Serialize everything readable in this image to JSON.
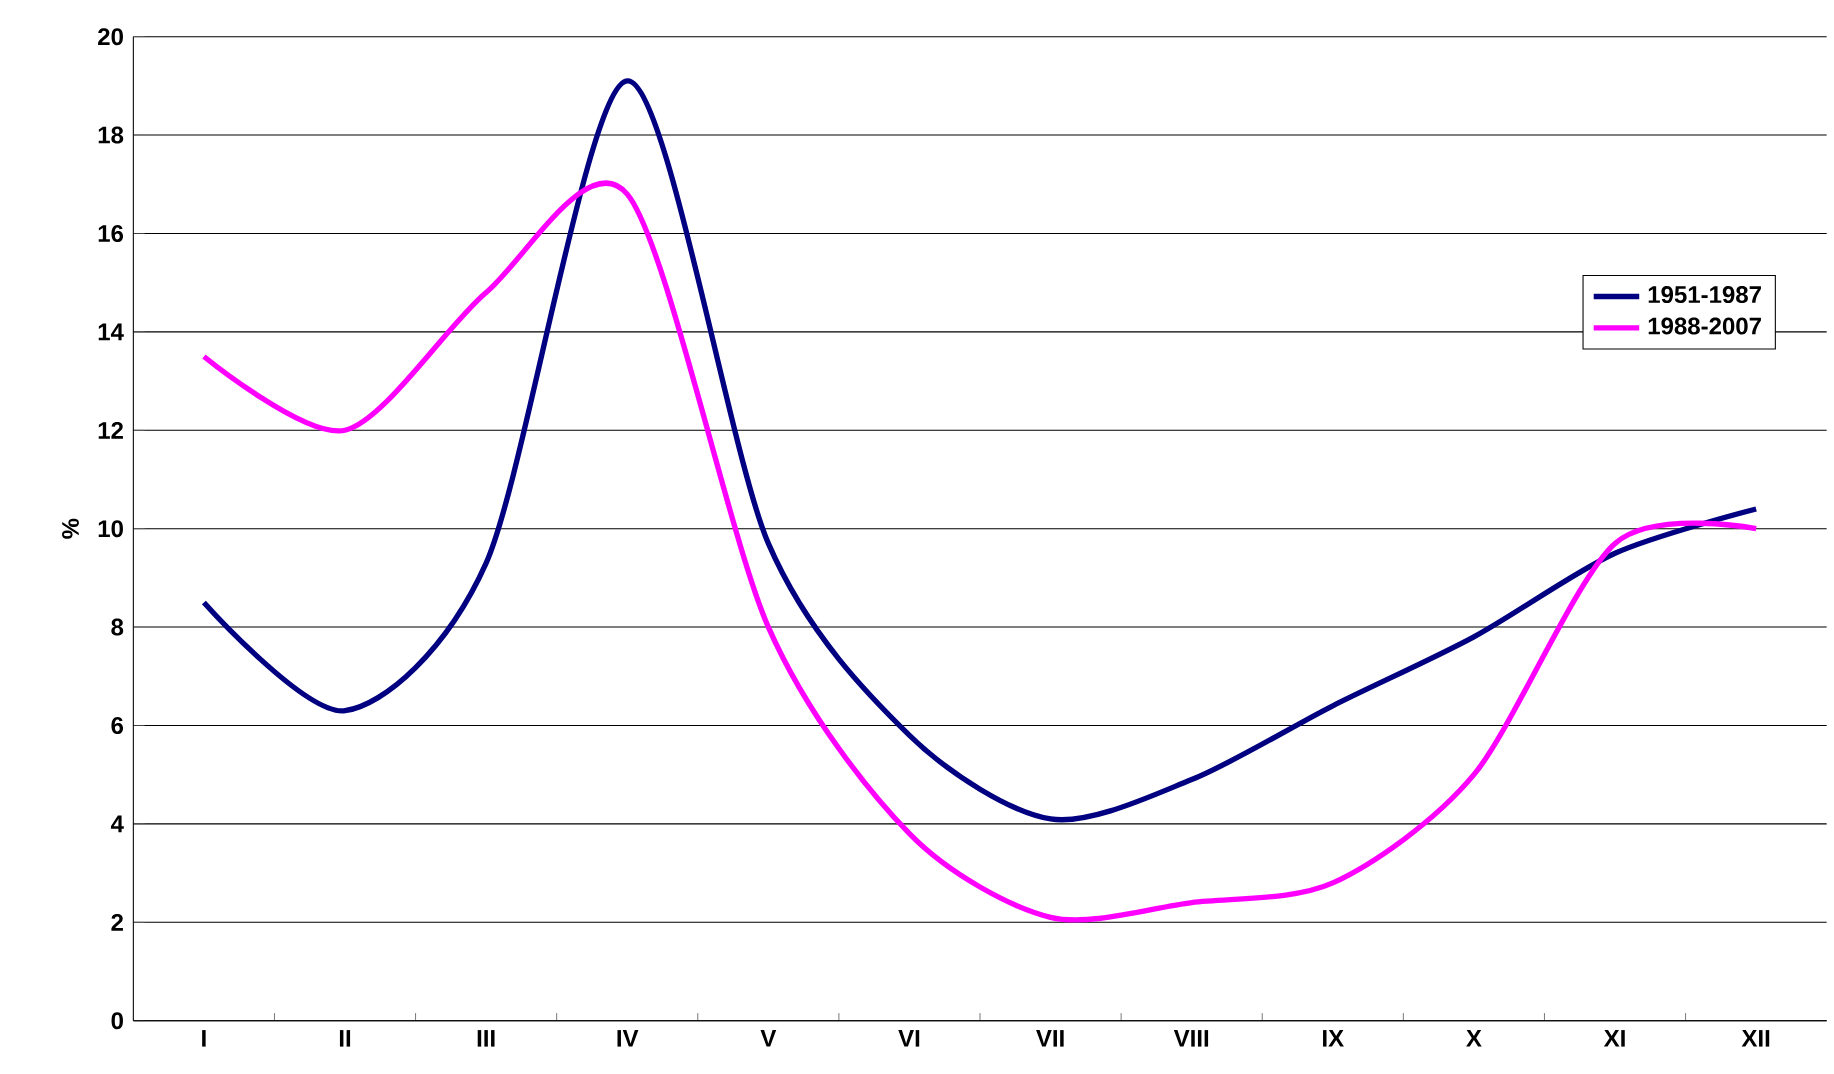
{
  "chart_data": {
    "type": "line",
    "ylabel": "%",
    "categories": [
      "I",
      "II",
      "III",
      "IV",
      "V",
      "VI",
      "VII",
      "VIII",
      "IX",
      "X",
      "XI",
      "XII"
    ],
    "series": [
      {
        "name": "1951-1987",
        "color": "#000080",
        "values": [
          8.5,
          6.3,
          9.3,
          19.1,
          9.7,
          5.8,
          4.1,
          4.9,
          6.4,
          7.8,
          9.5,
          10.4
        ]
      },
      {
        "name": "1988-2007",
        "color": "#ff00ff",
        "values": [
          13.5,
          12.0,
          14.8,
          16.8,
          8.0,
          3.8,
          2.1,
          2.4,
          2.8,
          5.0,
          9.7,
          10.0
        ]
      }
    ],
    "ylim": [
      0,
      20
    ],
    "yticks": [
      0,
      2,
      4,
      6,
      8,
      10,
      12,
      14,
      16,
      18,
      20
    ],
    "grid": "y",
    "legend": "right",
    "marker": "none",
    "line_style": "solid"
  }
}
